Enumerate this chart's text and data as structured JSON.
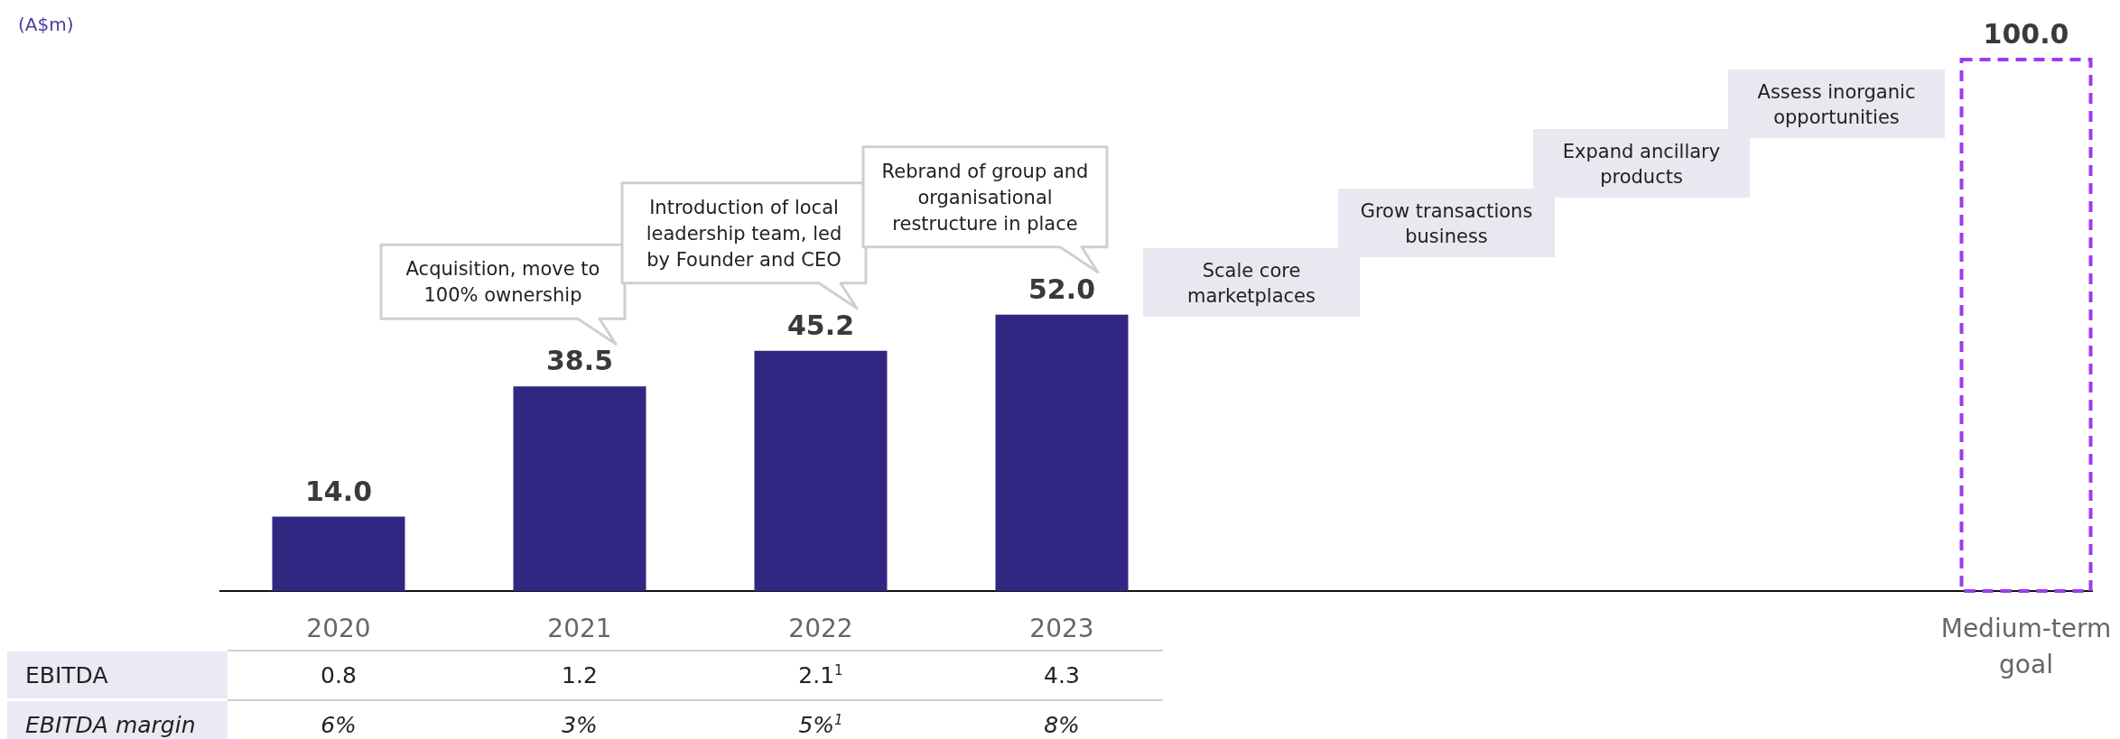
{
  "chart_data": {
    "type": "bar",
    "categories": [
      "2020",
      "2021",
      "2022",
      "2023",
      null,
      null,
      null,
      "Medium-term goal"
    ],
    "series": [
      {
        "color": "#312783",
        "values": [
          14.0,
          38.5,
          45.2,
          52.0,
          null,
          null,
          null,
          null
        ],
        "value_labels": [
          "14.0",
          "38.5",
          "45.2",
          "52.0",
          null,
          null,
          null,
          null
        ]
      },
      {
        "color": "#9b3cf0",
        "line_style": "dashed",
        "values": [
          null,
          null,
          null,
          null,
          null,
          null,
          null,
          100.0
        ],
        "value_labels": [
          null,
          null,
          null,
          null,
          null,
          null,
          null,
          "100.0"
        ]
      }
    ],
    "annotations": [
      "(A$m)",
      "Acquisition, move to 100% ownership",
      "Introduction of local leadership team, led by Founder and CEO",
      "Rebrand of group and organisational restructure in place",
      "Scale core marketplaces",
      "Grow transactions business",
      "Expand ancillary products",
      "Assess inorganic opportunities",
      "EBITDA",
      "0.8",
      "1.2",
      "2.1$^{1}$",
      "4.3",
      "EBITDA margin",
      "6%",
      "3%",
      "5%$^{1}$",
      "8%"
    ]
  }
}
